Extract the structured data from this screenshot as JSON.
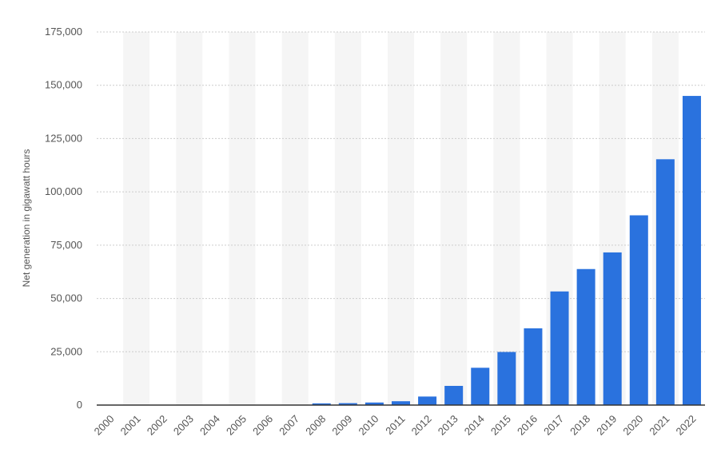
{
  "chart_data": {
    "type": "bar",
    "ylabel": "Net generation in gigawatt hours",
    "xlabel": "",
    "title": "",
    "ylim": [
      0,
      175000
    ],
    "yticks": [
      0,
      25000,
      50000,
      75000,
      100000,
      125000,
      150000,
      175000
    ],
    "ytick_labels": [
      "0",
      "25,000",
      "50,000",
      "75,000",
      "100,000",
      "125,000",
      "150,000",
      "175,000"
    ],
    "categories": [
      "2000",
      "2001",
      "2002",
      "2003",
      "2004",
      "2005",
      "2006",
      "2007",
      "2008",
      "2009",
      "2010",
      "2011",
      "2012",
      "2013",
      "2014",
      "2015",
      "2016",
      "2017",
      "2018",
      "2019",
      "2020",
      "2021",
      "2022"
    ],
    "values": [
      0,
      0,
      0,
      0,
      0,
      0,
      0,
      0,
      800,
      900,
      1200,
      1800,
      4000,
      9000,
      17500,
      24900,
      36000,
      53300,
      63800,
      71600,
      89000,
      115300,
      145000
    ],
    "grid": true,
    "colors": {
      "bar": "#2a72de",
      "grid": "#cccccc",
      "band": "#f5f5f5",
      "axis": "#333333",
      "text": "#555555"
    }
  }
}
